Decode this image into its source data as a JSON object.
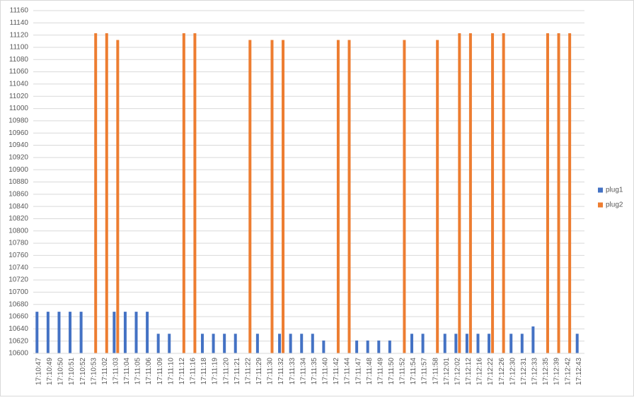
{
  "chart_data": {
    "type": "bar",
    "categories": [
      "17:10:47",
      "17:10:49",
      "17:10:50",
      "17:10:51",
      "17:10:52",
      "17:10:53",
      "17:11:02",
      "17:11:03",
      "17:11:04",
      "17:11:05",
      "17:11:06",
      "17:11:09",
      "17:11:10",
      "17:11:12",
      "17:11:16",
      "17:11:18",
      "17:11:19",
      "17:11:20",
      "17:11:21",
      "17:11:22",
      "17:11:29",
      "17:11:30",
      "17:11:32",
      "17:11:33",
      "17:11:34",
      "17:11:35",
      "17:11:40",
      "17:11:42",
      "17:11:44",
      "17:11:47",
      "17:11:48",
      "17:11:49",
      "17:11:50",
      "17:11:52",
      "17:11:54",
      "17:11:57",
      "17:11:58",
      "17:12:01",
      "17:12:02",
      "17:12:12",
      "17:12:16",
      "17:12:22",
      "17:12:26",
      "17:12:30",
      "17:12:31",
      "17:12:33",
      "17:12:35",
      "17:12:39",
      "17:12:42",
      "17:12:43"
    ],
    "series": [
      {
        "name": "plug1",
        "color": "#4472c4",
        "values": [
          10668,
          10668,
          10668,
          10668,
          10668,
          null,
          null,
          10668,
          10668,
          10668,
          10668,
          10632,
          10632,
          null,
          null,
          10632,
          10632,
          10632,
          10632,
          null,
          10632,
          null,
          10632,
          10632,
          10632,
          10632,
          10621,
          null,
          null,
          10621,
          10621,
          10621,
          10621,
          null,
          10632,
          10632,
          null,
          10632,
          10632,
          10632,
          10632,
          10632,
          null,
          10632,
          10632,
          10644,
          null,
          null,
          null,
          10632
        ]
      },
      {
        "name": "plug2",
        "color": "#ed7d31",
        "values": [
          null,
          null,
          null,
          null,
          null,
          11123,
          11123,
          11112,
          null,
          null,
          null,
          null,
          null,
          11123,
          11123,
          null,
          null,
          null,
          null,
          11112,
          null,
          11112,
          11112,
          null,
          null,
          null,
          null,
          11112,
          11112,
          null,
          null,
          null,
          null,
          11112,
          null,
          null,
          11112,
          null,
          11123,
          11123,
          null,
          11123,
          11123,
          null,
          null,
          null,
          11123,
          11123,
          11123,
          null
        ]
      }
    ],
    "ylim": [
      10600,
      11160
    ],
    "yticks": [
      10600,
      10620,
      10640,
      10660,
      10680,
      10700,
      10720,
      10740,
      10760,
      10780,
      10800,
      10820,
      10840,
      10860,
      10880,
      10900,
      10920,
      10940,
      10960,
      10980,
      11000,
      11020,
      11040,
      11060,
      11080,
      11100,
      11120,
      11140,
      11160
    ],
    "grid": true,
    "legend": "right"
  }
}
